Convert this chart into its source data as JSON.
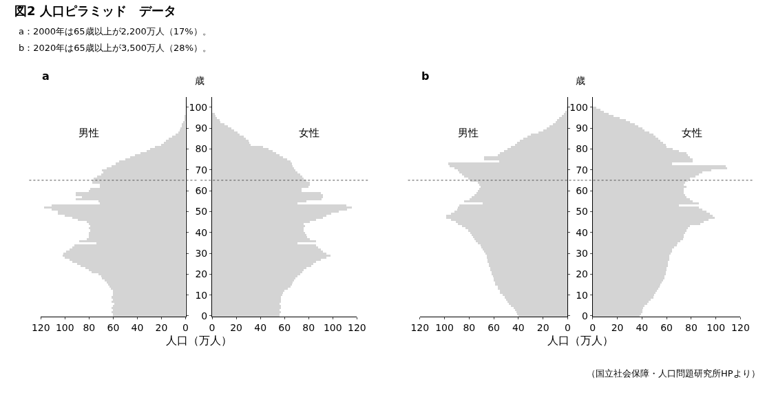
{
  "chart_data": [
    {
      "type": "bar",
      "orientation": "horizontal",
      "title": "a",
      "xlabel": "人口（万人）",
      "tick_labels": "x",
      "annotations": [
        "図2 人口ピラミッド　データ",
        "a：2000年は65歳以上が2,200万人（17%）。",
        "b：2020年は65歳以上が3,500万人（28%）。"
      ],
      "x": [
        0,
        1,
        2,
        3,
        4,
        5,
        6,
        7,
        8,
        9,
        10,
        11,
        12,
        13,
        14,
        15,
        16,
        17,
        18,
        19,
        20,
        21,
        22,
        23,
        24,
        25,
        26,
        27,
        28,
        29,
        30,
        31,
        32,
        33,
        34,
        35,
        36,
        37,
        38,
        39,
        40,
        41,
        42,
        43,
        44,
        45,
        46,
        47,
        48,
        49,
        50,
        51,
        52,
        53,
        54,
        55,
        56,
        57,
        58,
        59,
        60,
        61,
        62,
        63,
        64,
        65,
        66,
        67,
        68,
        69,
        70,
        71,
        72,
        73,
        74,
        75,
        76,
        77,
        78,
        79,
        80,
        81,
        82,
        83,
        84,
        85,
        86,
        87,
        88,
        89,
        90,
        91,
        92,
        93,
        94,
        95,
        96,
        97,
        98,
        99,
        100
      ],
      "xlim": [
        120,
        0
      ],
      "xticks": [
        120,
        100,
        80,
        60,
        40,
        20,
        0
      ],
      "ylim": [
        -0.5,
        105
      ],
      "yticks": [
        0,
        10,
        20,
        30,
        40,
        50,
        60,
        70,
        80,
        90,
        100
      ],
      "ref_lines": [
        {
          "axis": "y",
          "value": 65,
          "color": "#555555",
          "line_style": "dotted"
        }
      ],
      "series": [
        {
          "name": "男性",
          "color": "#d4d4d4",
          "values": [
            60,
            60,
            61,
            60,
            61,
            60,
            59,
            61,
            60,
            61,
            60,
            60,
            60,
            62,
            63,
            64,
            65,
            67,
            69,
            70,
            72,
            78,
            80,
            83,
            87,
            90,
            94,
            96,
            100,
            102,
            101,
            99,
            96,
            94,
            92,
            74,
            88,
            82,
            80,
            80,
            80,
            79,
            80,
            79,
            80,
            82,
            89,
            94,
            100,
            106,
            106,
            111,
            117,
            111,
            71,
            72,
            91,
            86,
            91,
            91,
            80,
            79,
            71,
            71,
            77,
            77,
            76,
            73,
            70,
            68,
            69,
            65,
            61,
            58,
            55,
            50,
            46,
            42,
            37,
            32,
            29,
            25,
            20,
            18,
            16,
            14,
            11,
            8,
            6,
            5,
            4,
            3,
            3,
            2,
            1,
            1,
            1,
            0,
            0,
            0,
            0
          ]
        }
      ]
    },
    {
      "type": "bar",
      "orientation": "horizontal",
      "ylabel": "歳",
      "x": [
        0,
        1,
        2,
        3,
        4,
        5,
        6,
        7,
        8,
        9,
        10,
        11,
        12,
        13,
        14,
        15,
        16,
        17,
        18,
        19,
        20,
        21,
        22,
        23,
        24,
        25,
        26,
        27,
        28,
        29,
        30,
        31,
        32,
        33,
        34,
        35,
        36,
        37,
        38,
        39,
        40,
        41,
        42,
        43,
        44,
        45,
        46,
        47,
        48,
        49,
        50,
        51,
        52,
        53,
        54,
        55,
        56,
        57,
        58,
        59,
        60,
        61,
        62,
        63,
        64,
        65,
        66,
        67,
        68,
        69,
        70,
        71,
        72,
        73,
        74,
        75,
        76,
        77,
        78,
        79,
        80,
        81,
        82,
        83,
        84,
        85,
        86,
        87,
        88,
        89,
        90,
        91,
        92,
        93,
        94,
        95,
        96,
        97,
        98,
        99,
        100
      ],
      "xlim": [
        0,
        120
      ],
      "xticks": [
        0,
        20,
        40,
        60,
        80,
        100,
        120
      ],
      "ylim": [
        -0.5,
        105
      ],
      "yticks": [
        0,
        10,
        20,
        30,
        40,
        50,
        60,
        70,
        80,
        90,
        100
      ],
      "ref_lines": [
        {
          "axis": "y",
          "value": 65,
          "color": "#555555",
          "line_style": "dotted"
        }
      ],
      "series": [
        {
          "name": "女性",
          "color": "#d4d4d4",
          "values": [
            56,
            56,
            57,
            56,
            57,
            57,
            56,
            57,
            57,
            57,
            58,
            59,
            60,
            63,
            65,
            66,
            67,
            68,
            69,
            71,
            73,
            75,
            76,
            78,
            82,
            84,
            86,
            90,
            95,
            98,
            95,
            92,
            90,
            88,
            86,
            71,
            86,
            81,
            79,
            78,
            77,
            76,
            76,
            77,
            76,
            81,
            86,
            92,
            95,
            99,
            105,
            112,
            116,
            111,
            71,
            78,
            91,
            92,
            92,
            90,
            74,
            74,
            80,
            81,
            81,
            78,
            76,
            75,
            73,
            71,
            69,
            68,
            67,
            66,
            65,
            62,
            59,
            56,
            53,
            50,
            47,
            42,
            32,
            31,
            30,
            28,
            26,
            23,
            21,
            18,
            16,
            13,
            10,
            7,
            6,
            4,
            3,
            2,
            null,
            null,
            0
          ]
        }
      ]
    },
    {
      "type": "bar",
      "orientation": "horizontal",
      "title": "b",
      "xlabel": "人口（万人）",
      "tick_labels": "x",
      "x": [
        0,
        1,
        2,
        3,
        4,
        5,
        6,
        7,
        8,
        9,
        10,
        11,
        12,
        13,
        14,
        15,
        16,
        17,
        18,
        19,
        20,
        21,
        22,
        23,
        24,
        25,
        26,
        27,
        28,
        29,
        30,
        31,
        32,
        33,
        34,
        35,
        36,
        37,
        38,
        39,
        40,
        41,
        42,
        43,
        44,
        45,
        46,
        47,
        48,
        49,
        50,
        51,
        52,
        53,
        54,
        55,
        56,
        57,
        58,
        59,
        60,
        61,
        62,
        63,
        64,
        65,
        66,
        67,
        68,
        69,
        70,
        71,
        72,
        73,
        74,
        75,
        76,
        77,
        78,
        79,
        80,
        81,
        82,
        83,
        84,
        85,
        86,
        87,
        88,
        89,
        90,
        91,
        92,
        93,
        94,
        95,
        96,
        97,
        98,
        99,
        100
      ],
      "xlim": [
        120,
        0
      ],
      "xticks": [
        120,
        100,
        80,
        60,
        40,
        20,
        0
      ],
      "ylim": [
        -0.5,
        105
      ],
      "yticks": [
        0,
        10,
        20,
        30,
        40,
        50,
        60,
        70,
        80,
        90,
        100
      ],
      "ref_lines": [
        {
          "axis": "y",
          "value": 65,
          "color": "#555555",
          "line_style": "dotted"
        }
      ],
      "series": [
        {
          "name": "男性",
          "color": "#d4d4d4",
          "values": [
            40,
            41,
            42,
            43,
            44,
            46,
            48,
            49,
            50,
            51,
            53,
            55,
            55,
            57,
            57,
            59,
            59,
            60,
            60,
            61,
            62,
            62,
            63,
            63,
            64,
            64,
            65,
            65,
            66,
            66,
            67,
            68,
            69,
            70,
            71,
            73,
            75,
            76,
            77,
            78,
            79,
            81,
            83,
            86,
            89,
            91,
            95,
            99,
            99,
            95,
            92,
            90,
            89,
            88,
            69,
            84,
            80,
            78,
            76,
            74,
            73,
            72,
            71,
            72,
            73,
            79,
            81,
            84,
            86,
            88,
            89,
            92,
            96,
            97,
            56,
            68,
            68,
            57,
            55,
            52,
            49,
            46,
            43,
            41,
            39,
            36,
            33,
            30,
            24,
            20,
            17,
            15,
            12,
            10,
            9,
            7,
            5,
            3,
            2,
            1,
            1
          ]
        }
      ]
    },
    {
      "type": "bar",
      "orientation": "horizontal",
      "ylabel": "歳",
      "annotations": [
        "（国立社会保障・人口問題研究所HPより）"
      ],
      "x": [
        0,
        1,
        2,
        3,
        4,
        5,
        6,
        7,
        8,
        9,
        10,
        11,
        12,
        13,
        14,
        15,
        16,
        17,
        18,
        19,
        20,
        21,
        22,
        23,
        24,
        25,
        26,
        27,
        28,
        29,
        30,
        31,
        32,
        33,
        34,
        35,
        36,
        37,
        38,
        39,
        40,
        41,
        42,
        43,
        44,
        45,
        46,
        47,
        48,
        49,
        50,
        51,
        52,
        53,
        54,
        55,
        56,
        57,
        58,
        59,
        60,
        61,
        62,
        63,
        64,
        65,
        66,
        67,
        68,
        69,
        70,
        71,
        72,
        73,
        74,
        75,
        76,
        77,
        78,
        79,
        80,
        81,
        82,
        83,
        84,
        85,
        86,
        87,
        88,
        89,
        90,
        91,
        92,
        93,
        94,
        95,
        96,
        97,
        98,
        99,
        100
      ],
      "xlim": [
        0,
        120
      ],
      "xticks": [
        0,
        20,
        40,
        60,
        80,
        100,
        120
      ],
      "ylim": [
        -0.5,
        105
      ],
      "yticks": [
        0,
        10,
        20,
        30,
        40,
        50,
        60,
        70,
        80,
        90,
        100
      ],
      "ref_lines": [
        {
          "axis": "y",
          "value": 65,
          "color": "#555555",
          "line_style": "dotted"
        }
      ],
      "series": [
        {
          "name": "女性",
          "color": "#d4d4d4",
          "values": [
            38,
            39,
            40,
            40,
            41,
            42,
            44,
            45,
            47,
            49,
            50,
            51,
            52,
            53,
            54,
            55,
            56,
            57,
            58,
            58,
            59,
            59,
            60,
            60,
            61,
            61,
            61,
            62,
            62,
            62,
            63,
            64,
            64,
            66,
            68,
            69,
            71,
            73,
            74,
            74,
            75,
            76,
            77,
            79,
            87,
            90,
            94,
            99,
            97,
            95,
            92,
            89,
            86,
            70,
            86,
            81,
            79,
            76,
            75,
            74,
            74,
            74,
            76,
            74,
            75,
            77,
            79,
            83,
            86,
            89,
            96,
            109,
            108,
            64,
            81,
            81,
            79,
            77,
            76,
            70,
            65,
            60,
            59,
            57,
            55,
            53,
            51,
            49,
            46,
            42,
            40,
            37,
            34,
            30,
            27,
            22,
            17,
            13,
            9,
            6,
            3
          ]
        }
      ]
    }
  ]
}
